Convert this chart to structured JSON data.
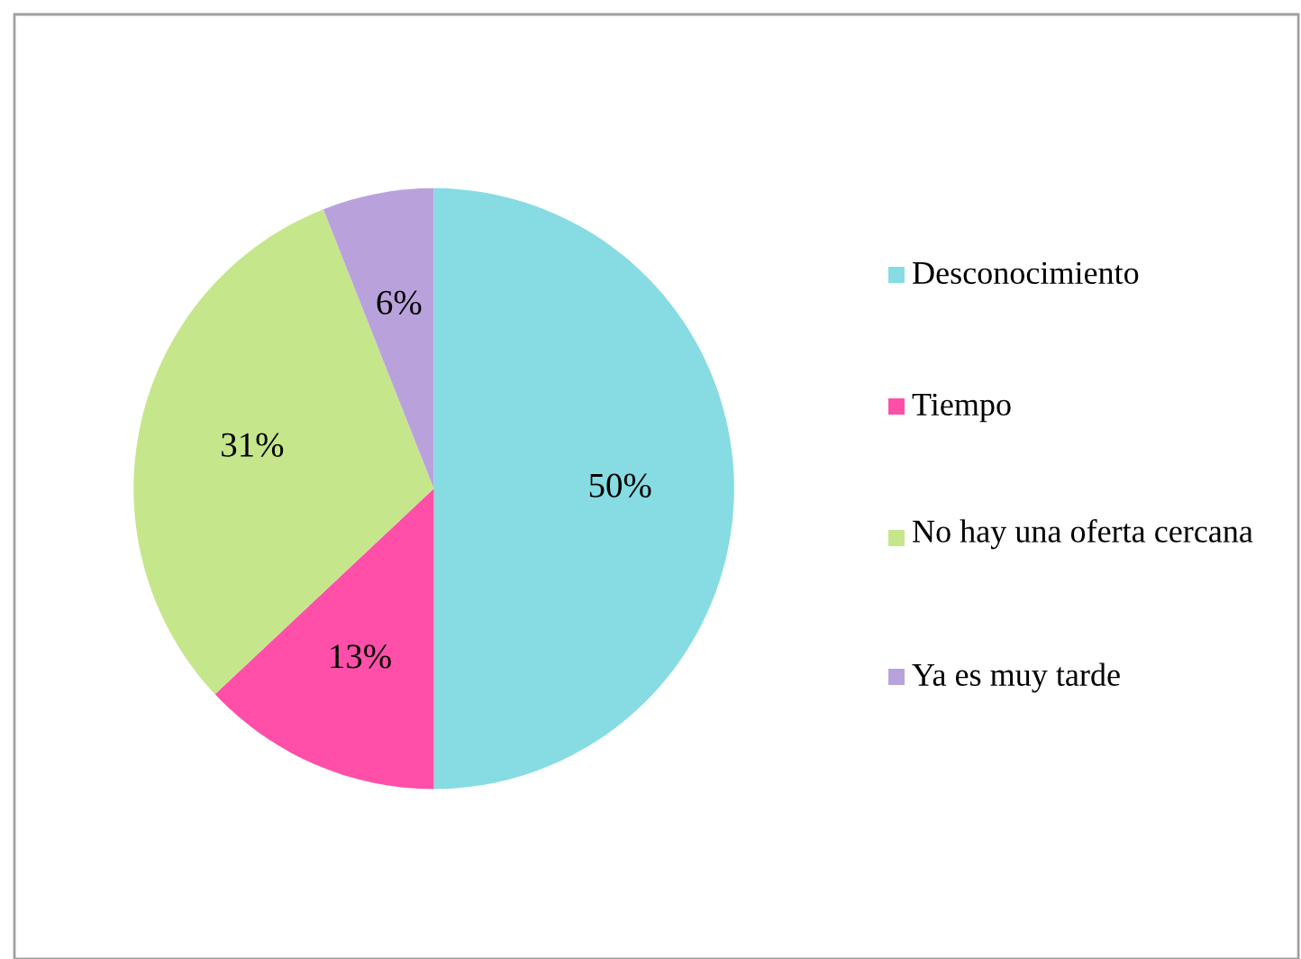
{
  "chart_data": {
    "type": "pie",
    "categories": [
      "Desconocimiento",
      "Tiempo",
      "No hay una oferta cercana",
      "Ya es muy tarde"
    ],
    "values": [
      50,
      13,
      31,
      6
    ],
    "colors": [
      "#86dce2",
      "#ff4fa8",
      "#c6e68c",
      "#b9a2dc"
    ],
    "value_labels": [
      "50%",
      "13%",
      "31%",
      "6%"
    ],
    "legend": "right"
  }
}
